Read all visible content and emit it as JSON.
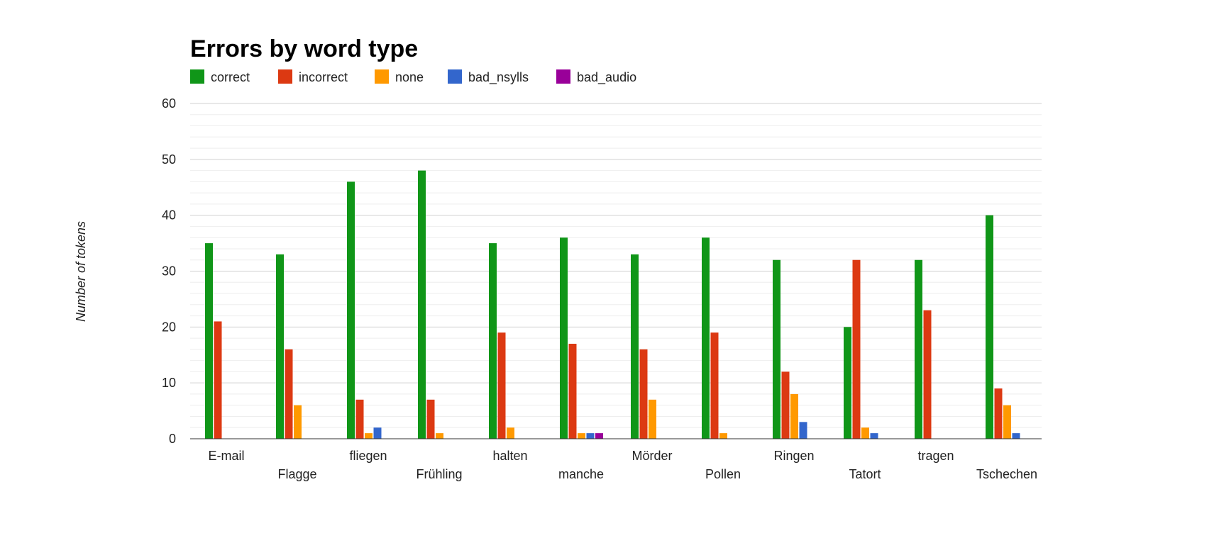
{
  "chart_data": {
    "type": "bar",
    "title": "Errors by word type",
    "xlabel": "",
    "ylabel": "Number of tokens",
    "ylim": [
      0,
      60
    ],
    "yticks": [
      0,
      10,
      20,
      30,
      40,
      50,
      60
    ],
    "grid": true,
    "legend_position": "top-left",
    "categories": [
      "E-mail",
      "Flagge",
      "fliegen",
      "Frühling",
      "halten",
      "manche",
      "Mörder",
      "Pollen",
      "Ringen",
      "Tatort",
      "tragen",
      "Tschechen"
    ],
    "series": [
      {
        "name": "correct",
        "color": "#109618",
        "values": [
          35,
          33,
          46,
          48,
          35,
          36,
          33,
          36,
          32,
          20,
          32,
          40
        ]
      },
      {
        "name": "incorrect",
        "color": "#dc3912",
        "values": [
          21,
          16,
          7,
          7,
          19,
          17,
          16,
          19,
          12,
          32,
          23,
          9
        ]
      },
      {
        "name": "none",
        "color": "#ff9900",
        "values": [
          0,
          6,
          1,
          1,
          2,
          1,
          7,
          1,
          8,
          2,
          0,
          6
        ]
      },
      {
        "name": "bad_nsylls",
        "color": "#3366cc",
        "values": [
          0,
          0,
          2,
          0,
          0,
          1,
          0,
          0,
          3,
          1,
          0,
          1
        ]
      },
      {
        "name": "bad_audio",
        "color": "#990099",
        "values": [
          0,
          0,
          0,
          0,
          0,
          1,
          0,
          0,
          0,
          0,
          0,
          0
        ]
      }
    ]
  }
}
